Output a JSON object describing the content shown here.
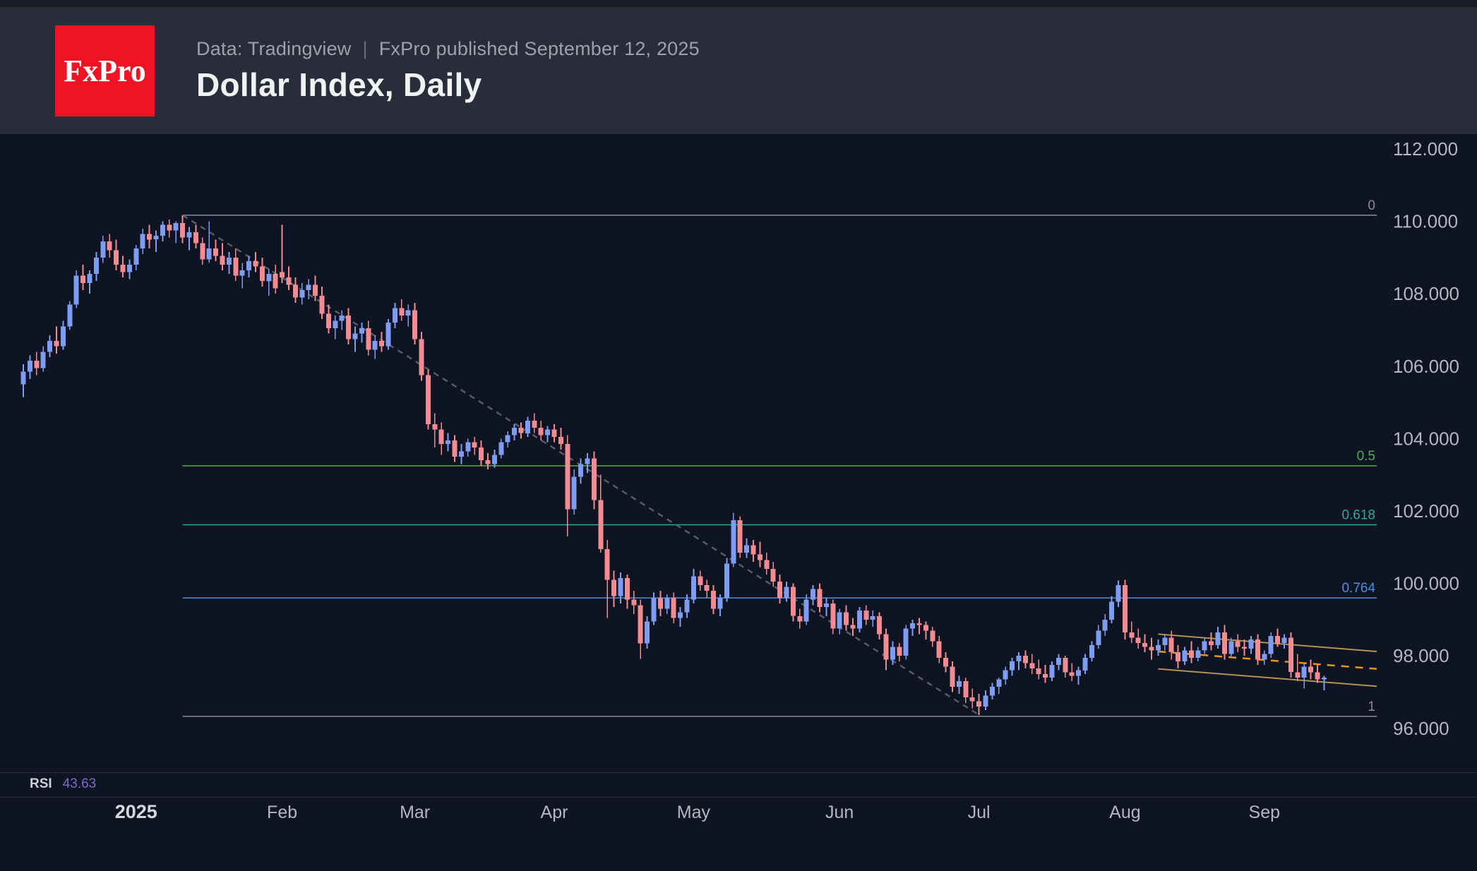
{
  "header": {
    "logo_text": "FxPro",
    "source_prefix": "Data: Tradingview",
    "source_separator": "|",
    "source_suffix": "FxPro published September 12, 2025",
    "title": "Dollar Index, Daily"
  },
  "rsi": {
    "label": "RSI",
    "value": "43.63",
    "value_color": "#8168c9"
  },
  "chart_data": {
    "type": "candlestick",
    "title": "Dollar Index, Daily",
    "grid": false,
    "up_color": "#7e9cf2",
    "down_color": "#f38b92",
    "background_color": "#0e1421",
    "y_axis": {
      "side": "right",
      "text_color": "#b4b7c0",
      "ticks": [
        {
          "value": 112,
          "label": "112.000"
        },
        {
          "value": 110,
          "label": "110.000"
        },
        {
          "value": 108,
          "label": "108.000"
        },
        {
          "value": 106,
          "label": "106.000"
        },
        {
          "value": 104,
          "label": "104.000"
        },
        {
          "value": 102,
          "label": "102.000"
        },
        {
          "value": 100,
          "label": "100.000"
        },
        {
          "value": 98,
          "label": "98.000"
        },
        {
          "value": 96,
          "label": "96.000"
        }
      ]
    },
    "x_axis": {
      "text_color": "#b4b7c0",
      "year_text_color": "#d4d7de",
      "labels": [
        {
          "label": "2025",
          "index": 17,
          "bold": true
        },
        {
          "label": "Feb",
          "index": 39
        },
        {
          "label": "Mar",
          "index": 59
        },
        {
          "label": "Apr",
          "index": 80
        },
        {
          "label": "May",
          "index": 101
        },
        {
          "label": "Jun",
          "index": 123
        },
        {
          "label": "Jul",
          "index": 144
        },
        {
          "label": "Aug",
          "index": 166
        },
        {
          "label": "Sep",
          "index": 187
        }
      ]
    },
    "fib_retracement": {
      "start_index": 24,
      "anchor_high": 110.17,
      "anchor_low": 96.33,
      "levels": [
        {
          "label": "0",
          "value": 110.17,
          "color": "#8a8d98"
        },
        {
          "label": "0.5",
          "value": 103.25,
          "color": "#4caf50"
        },
        {
          "label": "0.618",
          "value": 101.62,
          "color": "#2fa99a"
        },
        {
          "label": "0.764",
          "value": 99.6,
          "color": "#4a8fe0"
        },
        {
          "label": "1",
          "value": 96.33,
          "color": "#8a8d98"
        }
      ]
    },
    "trendline": {
      "dashed": true,
      "color": "#565b66",
      "from": {
        "index": 24,
        "value": 110.17
      },
      "to": {
        "index": 144,
        "value": 96.37
      }
    },
    "channel": {
      "start_index": 171,
      "upper_start": 98.6,
      "upper_end": 98.12,
      "lower_start": 97.64,
      "lower_end": 97.16,
      "line_color": "#b3914f",
      "median_color": "#e8941f",
      "median_dashed": true
    },
    "candles": [
      [
        105.5,
        106.05,
        105.15,
        105.85
      ],
      [
        105.85,
        106.3,
        105.65,
        106.15
      ],
      [
        106.15,
        106.4,
        105.75,
        105.95
      ],
      [
        105.95,
        106.55,
        105.85,
        106.4
      ],
      [
        106.4,
        106.85,
        106.25,
        106.7
      ],
      [
        106.7,
        107.1,
        106.35,
        106.55
      ],
      [
        106.55,
        107.25,
        106.45,
        107.1
      ],
      [
        107.1,
        107.8,
        107.0,
        107.7
      ],
      [
        107.7,
        108.65,
        107.6,
        108.5
      ],
      [
        108.5,
        108.8,
        108.1,
        108.3
      ],
      [
        108.3,
        108.65,
        108.0,
        108.55
      ],
      [
        108.55,
        109.15,
        108.35,
        109.0
      ],
      [
        109.0,
        109.6,
        108.85,
        109.45
      ],
      [
        109.45,
        109.65,
        109.0,
        109.2
      ],
      [
        109.2,
        109.5,
        108.65,
        108.8
      ],
      [
        108.8,
        109.05,
        108.45,
        108.6
      ],
      [
        108.6,
        108.95,
        108.4,
        108.8
      ],
      [
        108.8,
        109.35,
        108.65,
        109.25
      ],
      [
        109.25,
        109.8,
        109.1,
        109.65
      ],
      [
        109.65,
        109.9,
        109.25,
        109.5
      ],
      [
        109.5,
        109.75,
        109.15,
        109.6
      ],
      [
        109.6,
        110.0,
        109.45,
        109.9
      ],
      [
        109.9,
        110.05,
        109.55,
        109.75
      ],
      [
        109.75,
        110.0,
        109.4,
        109.95
      ],
      [
        109.95,
        110.17,
        109.4,
        109.55
      ],
      [
        109.55,
        109.85,
        109.2,
        109.7
      ],
      [
        109.7,
        109.9,
        109.25,
        109.4
      ],
      [
        109.4,
        109.55,
        108.8,
        108.95
      ],
      [
        108.95,
        110.0,
        108.85,
        109.25
      ],
      [
        109.25,
        109.5,
        108.9,
        109.05
      ],
      [
        109.05,
        109.4,
        108.65,
        108.8
      ],
      [
        108.8,
        109.15,
        108.55,
        109.0
      ],
      [
        109.0,
        109.25,
        108.35,
        108.5
      ],
      [
        108.5,
        108.85,
        108.15,
        108.65
      ],
      [
        108.65,
        109.05,
        108.45,
        108.9
      ],
      [
        108.9,
        109.15,
        108.6,
        108.75
      ],
      [
        108.75,
        109.0,
        108.2,
        108.35
      ],
      [
        108.35,
        108.7,
        107.95,
        108.55
      ],
      [
        108.55,
        108.8,
        108.0,
        108.15
      ],
      [
        108.6,
        109.9,
        108.3,
        108.45
      ],
      [
        108.45,
        108.75,
        108.1,
        108.25
      ],
      [
        108.25,
        108.45,
        107.75,
        107.9
      ],
      [
        107.9,
        108.3,
        107.7,
        108.1
      ],
      [
        108.1,
        108.4,
        107.85,
        108.25
      ],
      [
        108.25,
        108.5,
        107.8,
        107.95
      ],
      [
        107.95,
        108.2,
        107.3,
        107.45
      ],
      [
        107.45,
        107.7,
        106.9,
        107.05
      ],
      [
        107.05,
        107.4,
        106.75,
        107.25
      ],
      [
        107.25,
        107.55,
        107.0,
        107.4
      ],
      [
        107.4,
        107.6,
        106.6,
        106.75
      ],
      [
        106.75,
        107.1,
        106.4,
        106.9
      ],
      [
        106.9,
        107.2,
        106.65,
        107.05
      ],
      [
        107.05,
        107.25,
        106.3,
        106.45
      ],
      [
        106.45,
        106.85,
        106.2,
        106.7
      ],
      [
        106.7,
        106.95,
        106.4,
        106.55
      ],
      [
        106.55,
        107.3,
        106.45,
        107.2
      ],
      [
        107.2,
        107.75,
        107.05,
        107.6
      ],
      [
        107.6,
        107.85,
        107.25,
        107.4
      ],
      [
        107.4,
        107.7,
        107.1,
        107.55
      ],
      [
        107.55,
        107.75,
        106.6,
        106.75
      ],
      [
        106.75,
        106.95,
        105.6,
        105.75
      ],
      [
        105.75,
        105.9,
        104.25,
        104.4
      ],
      [
        104.4,
        104.7,
        103.75,
        104.25
      ],
      [
        104.25,
        104.45,
        103.55,
        103.85
      ],
      [
        103.85,
        104.15,
        103.65,
        103.95
      ],
      [
        103.95,
        104.1,
        103.35,
        103.5
      ],
      [
        103.5,
        103.85,
        103.3,
        103.65
      ],
      [
        103.65,
        104.0,
        103.5,
        103.9
      ],
      [
        103.9,
        104.05,
        103.55,
        103.75
      ],
      [
        103.75,
        103.95,
        103.25,
        103.4
      ],
      [
        103.4,
        103.6,
        103.15,
        103.3
      ],
      [
        103.3,
        103.7,
        103.2,
        103.55
      ],
      [
        103.55,
        104.0,
        103.45,
        103.9
      ],
      [
        103.9,
        104.2,
        103.75,
        104.1
      ],
      [
        104.1,
        104.4,
        103.95,
        104.3
      ],
      [
        104.3,
        104.45,
        104.0,
        104.15
      ],
      [
        104.15,
        104.6,
        104.05,
        104.5
      ],
      [
        104.5,
        104.7,
        104.15,
        104.3
      ],
      [
        104.3,
        104.5,
        103.95,
        104.1
      ],
      [
        104.1,
        104.35,
        103.9,
        104.25
      ],
      [
        104.25,
        104.4,
        103.9,
        104.05
      ],
      [
        104.05,
        104.3,
        103.7,
        103.85
      ],
      [
        103.85,
        104.1,
        101.3,
        102.05
      ],
      [
        102.05,
        103.15,
        101.9,
        102.95
      ],
      [
        102.95,
        103.45,
        102.75,
        103.3
      ],
      [
        103.3,
        103.6,
        103.05,
        103.45
      ],
      [
        103.45,
        103.65,
        102.05,
        102.3
      ],
      [
        102.3,
        103.0,
        100.85,
        100.95
      ],
      [
        100.95,
        101.2,
        99.05,
        100.1
      ],
      [
        100.1,
        100.35,
        99.35,
        99.65
      ],
      [
        99.65,
        100.3,
        99.45,
        100.15
      ],
      [
        100.15,
        100.25,
        99.3,
        99.55
      ],
      [
        99.55,
        99.8,
        99.15,
        99.4
      ],
      [
        99.4,
        99.55,
        97.92,
        98.35
      ],
      [
        98.35,
        99.1,
        98.2,
        98.95
      ],
      [
        98.95,
        99.75,
        98.85,
        99.6
      ],
      [
        99.6,
        99.8,
        99.1,
        99.3
      ],
      [
        99.3,
        99.7,
        99.15,
        99.6
      ],
      [
        99.6,
        99.75,
        98.9,
        99.05
      ],
      [
        99.05,
        99.35,
        98.8,
        99.2
      ],
      [
        99.2,
        99.7,
        99.05,
        99.55
      ],
      [
        99.55,
        100.4,
        99.45,
        100.2
      ],
      [
        100.2,
        100.35,
        99.8,
        99.95
      ],
      [
        99.95,
        100.1,
        99.6,
        99.8
      ],
      [
        99.8,
        99.95,
        99.15,
        99.3
      ],
      [
        99.3,
        99.7,
        99.1,
        99.6
      ],
      [
        99.6,
        100.7,
        99.5,
        100.55
      ],
      [
        100.55,
        101.95,
        100.45,
        101.75
      ],
      [
        101.75,
        101.85,
        100.7,
        100.85
      ],
      [
        100.85,
        101.25,
        100.7,
        101.05
      ],
      [
        101.05,
        101.2,
        100.6,
        100.8
      ],
      [
        100.8,
        101.15,
        100.45,
        100.65
      ],
      [
        100.65,
        100.85,
        100.25,
        100.4
      ],
      [
        100.4,
        100.6,
        99.9,
        100.05
      ],
      [
        100.05,
        100.25,
        99.45,
        99.6
      ],
      [
        99.6,
        100.05,
        99.5,
        99.9
      ],
      [
        99.9,
        100.0,
        98.95,
        99.1
      ],
      [
        99.1,
        99.3,
        98.75,
        98.95
      ],
      [
        98.95,
        99.7,
        98.85,
        99.55
      ],
      [
        99.55,
        99.95,
        99.4,
        99.85
      ],
      [
        99.85,
        100.0,
        99.2,
        99.35
      ],
      [
        99.35,
        99.6,
        99.1,
        99.45
      ],
      [
        99.45,
        99.55,
        98.6,
        98.75
      ],
      [
        98.75,
        99.3,
        98.6,
        99.2
      ],
      [
        99.2,
        99.4,
        98.7,
        98.85
      ],
      [
        98.85,
        99.05,
        98.55,
        98.75
      ],
      [
        98.75,
        99.35,
        98.65,
        99.25
      ],
      [
        99.25,
        99.4,
        98.85,
        99.0
      ],
      [
        99.0,
        99.25,
        98.8,
        99.1
      ],
      [
        99.1,
        99.2,
        98.45,
        98.6
      ],
      [
        98.6,
        98.75,
        97.6,
        97.9
      ],
      [
        97.9,
        98.4,
        97.75,
        98.25
      ],
      [
        98.25,
        98.35,
        97.85,
        98.0
      ],
      [
        98.0,
        98.85,
        97.9,
        98.75
      ],
      [
        98.75,
        99.0,
        98.55,
        98.9
      ],
      [
        98.9,
        99.05,
        98.6,
        98.85
      ],
      [
        98.85,
        98.95,
        98.45,
        98.7
      ],
      [
        98.7,
        98.8,
        98.25,
        98.4
      ],
      [
        98.4,
        98.55,
        97.8,
        97.95
      ],
      [
        97.95,
        98.1,
        97.55,
        97.7
      ],
      [
        97.7,
        97.85,
        97.0,
        97.15
      ],
      [
        97.15,
        97.45,
        96.95,
        97.3
      ],
      [
        97.3,
        97.4,
        96.7,
        96.85
      ],
      [
        96.85,
        97.1,
        96.55,
        96.75
      ],
      [
        96.75,
        96.95,
        96.37,
        96.6
      ],
      [
        96.6,
        97.05,
        96.5,
        96.9
      ],
      [
        96.9,
        97.25,
        96.8,
        97.15
      ],
      [
        97.15,
        97.4,
        96.95,
        97.35
      ],
      [
        97.35,
        97.7,
        97.2,
        97.6
      ],
      [
        97.6,
        97.95,
        97.45,
        97.85
      ],
      [
        97.85,
        98.1,
        97.6,
        98.0
      ],
      [
        98.0,
        98.15,
        97.65,
        97.8
      ],
      [
        97.8,
        98.05,
        97.5,
        97.65
      ],
      [
        97.65,
        97.9,
        97.35,
        97.5
      ],
      [
        97.5,
        97.75,
        97.25,
        97.4
      ],
      [
        97.4,
        97.85,
        97.3,
        97.75
      ],
      [
        97.75,
        98.05,
        97.6,
        97.95
      ],
      [
        97.95,
        98.0,
        97.4,
        97.55
      ],
      [
        97.55,
        97.8,
        97.3,
        97.45
      ],
      [
        97.45,
        97.7,
        97.2,
        97.6
      ],
      [
        97.6,
        98.05,
        97.5,
        97.95
      ],
      [
        97.95,
        98.4,
        97.85,
        98.3
      ],
      [
        98.3,
        98.85,
        98.2,
        98.7
      ],
      [
        98.7,
        99.15,
        98.55,
        99.0
      ],
      [
        99.0,
        99.65,
        98.9,
        99.5
      ],
      [
        99.5,
        100.08,
        99.35,
        99.95
      ],
      [
        99.95,
        100.1,
        98.45,
        98.65
      ],
      [
        98.65,
        98.95,
        98.35,
        98.5
      ],
      [
        98.5,
        98.75,
        98.2,
        98.35
      ],
      [
        98.35,
        98.6,
        98.1,
        98.25
      ],
      [
        98.25,
        98.5,
        97.9,
        98.15
      ],
      [
        98.15,
        98.45,
        98.0,
        98.3
      ],
      [
        98.3,
        98.6,
        98.15,
        98.5
      ],
      [
        98.5,
        98.7,
        97.9,
        98.1
      ],
      [
        98.1,
        98.3,
        97.65,
        97.85
      ],
      [
        97.85,
        98.25,
        97.75,
        98.15
      ],
      [
        98.15,
        98.4,
        97.8,
        97.95
      ],
      [
        97.95,
        98.25,
        97.85,
        98.15
      ],
      [
        98.15,
        98.5,
        98.05,
        98.4
      ],
      [
        98.4,
        98.65,
        98.15,
        98.3
      ],
      [
        98.3,
        98.8,
        98.2,
        98.65
      ],
      [
        98.65,
        98.85,
        97.9,
        98.05
      ],
      [
        98.05,
        98.5,
        97.95,
        98.4
      ],
      [
        98.4,
        98.6,
        98.1,
        98.25
      ],
      [
        98.25,
        98.45,
        98.0,
        98.2
      ],
      [
        98.2,
        98.55,
        98.05,
        98.45
      ],
      [
        98.45,
        98.6,
        97.75,
        97.9
      ],
      [
        97.9,
        98.15,
        97.75,
        98.05
      ],
      [
        98.05,
        98.65,
        97.95,
        98.55
      ],
      [
        98.55,
        98.75,
        98.25,
        98.35
      ],
      [
        98.35,
        98.6,
        98.2,
        98.5
      ],
      [
        98.5,
        98.65,
        97.4,
        97.55
      ],
      [
        97.55,
        98.05,
        97.3,
        97.4
      ],
      [
        97.4,
        97.8,
        97.1,
        97.7
      ],
      [
        97.7,
        97.9,
        97.35,
        97.55
      ],
      [
        97.55,
        97.75,
        97.25,
        97.35
      ],
      [
        97.35,
        97.45,
        97.05,
        97.4
      ]
    ]
  }
}
